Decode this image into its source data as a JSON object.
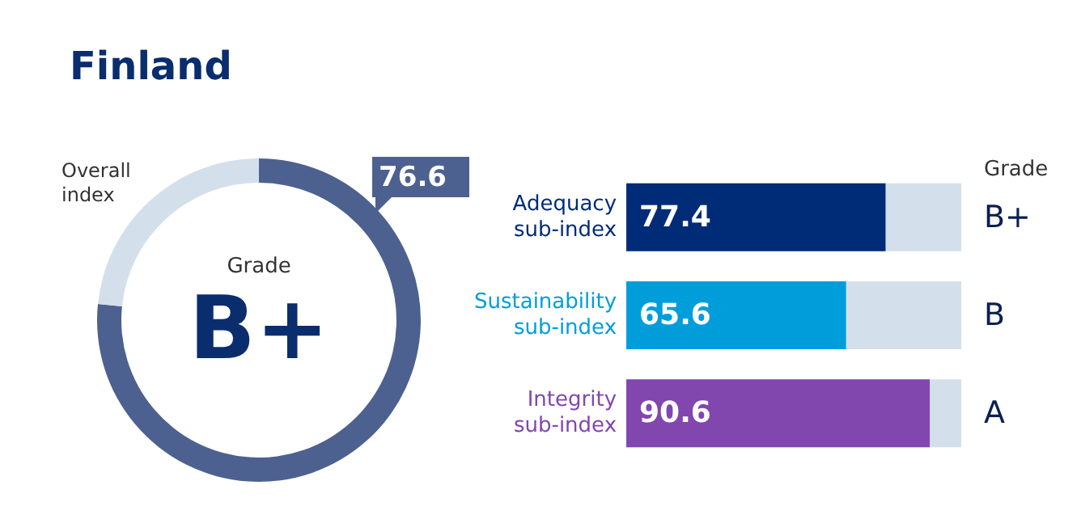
{
  "chart_data": [
    {
      "type": "donut",
      "title": "Finland",
      "categories": [
        null,
        null
      ],
      "values": [
        76.6,
        23.4
      ],
      "colors": [
        "#4d6190",
        "#d3e0ec"
      ],
      "value_labels": [
        "76.6",
        null
      ],
      "annotations": [
        "Overall index",
        "Grade",
        "B+"
      ]
    },
    {
      "type": "bar",
      "orientation": "horizontal",
      "categories": [
        "Adequacy sub-index",
        "Sustainability sub-index",
        "Integrity sub-index"
      ],
      "values": [
        77.4,
        65.6,
        90.6
      ],
      "colors": [
        "#002c77",
        "#009ddb",
        "#8246af"
      ],
      "xlim": [
        0,
        100
      ],
      "tick_labels": "y",
      "data_labels": true,
      "annotations": [
        "Grade",
        "B+",
        "B",
        "A"
      ]
    }
  ]
}
